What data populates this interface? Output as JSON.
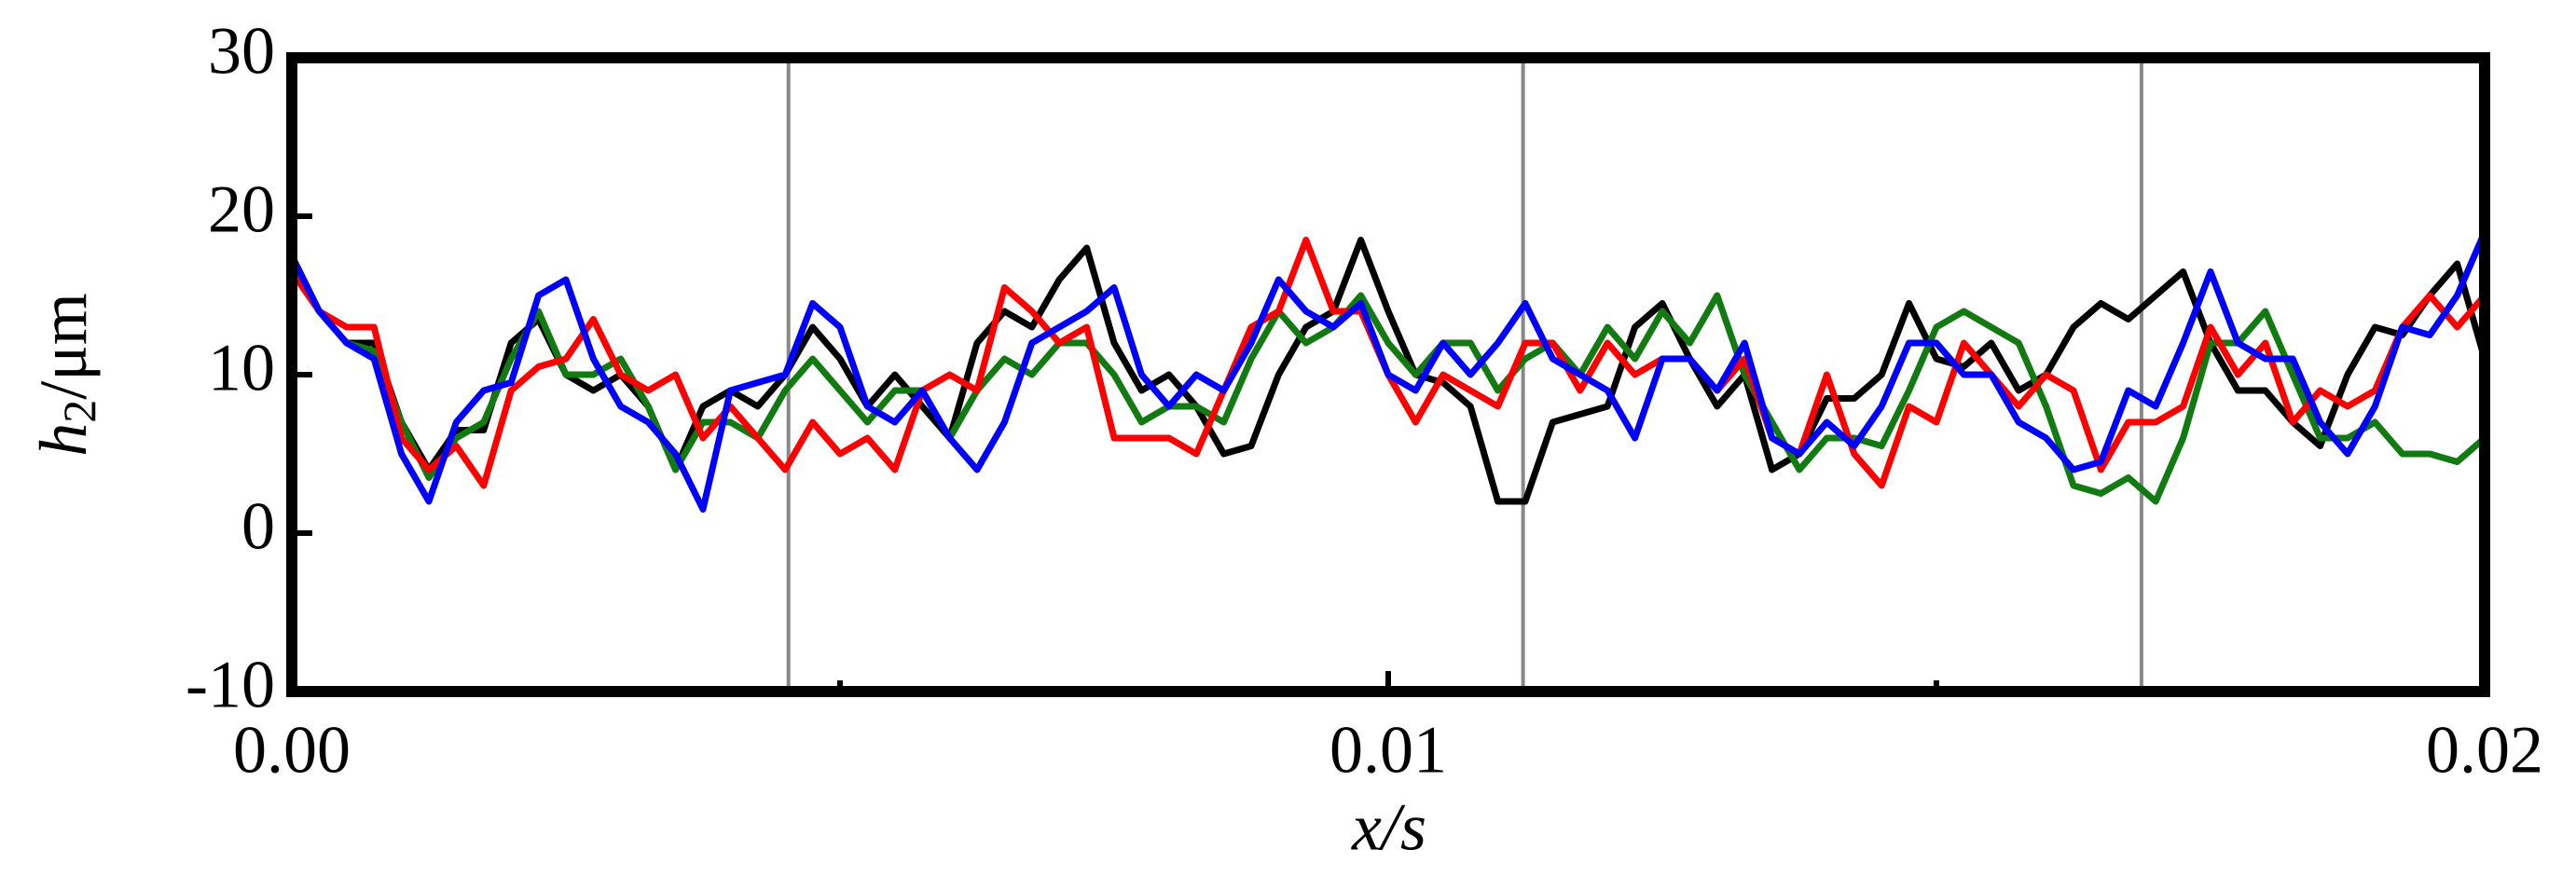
{
  "chart_data": {
    "type": "line",
    "xlabel": "x/s",
    "ylabel": [
      "h",
      "2",
      "/μm"
    ],
    "x": [
      0,
      0.00025,
      0.0005,
      0.00075,
      0.001,
      0.00125,
      0.0015,
      0.00175,
      0.002,
      0.00225,
      0.0025,
      0.00275,
      0.003,
      0.00325,
      0.0035,
      0.00375,
      0.004,
      0.00425,
      0.0045,
      0.00475,
      0.005,
      0.00525,
      0.0055,
      0.00575,
      0.006,
      0.00625,
      0.0065,
      0.00675,
      0.007,
      0.00725,
      0.0075,
      0.00775,
      0.008,
      0.00825,
      0.0085,
      0.00875,
      0.009,
      0.00925,
      0.0095,
      0.00975,
      0.01,
      0.01025,
      0.0105,
      0.01075,
      0.011,
      0.01125,
      0.0115,
      0.01175,
      0.012,
      0.01225,
      0.0125,
      0.01275,
      0.013,
      0.01325,
      0.0135,
      0.01375,
      0.014,
      0.01425,
      0.0145,
      0.01475,
      0.015,
      0.01525,
      0.0155,
      0.01575,
      0.016,
      0.01625,
      0.0165,
      0.01675,
      0.017,
      0.01725,
      0.0175,
      0.01775,
      0.018,
      0.01825,
      0.0185,
      0.01875,
      0.019,
      0.01925,
      0.0195,
      0.01975,
      0.02
    ],
    "series": [
      {
        "color": "#000000",
        "values": [
          17.5,
          14,
          12,
          12,
          7,
          4,
          6.5,
          6.5,
          12,
          13.5,
          10,
          9,
          10,
          8,
          4,
          8,
          9,
          8,
          10,
          13,
          11,
          8,
          10,
          8,
          6,
          12,
          14,
          13,
          16,
          18,
          12,
          9,
          10,
          8,
          5,
          5.5,
          10,
          13,
          14,
          18.5,
          14,
          10,
          9.5,
          8,
          2,
          2,
          7,
          7.5,
          8,
          13,
          14.5,
          11,
          8,
          10,
          4,
          5,
          8.5,
          8.5,
          10,
          14.5,
          11,
          10.5,
          12,
          9,
          10,
          13,
          14.5,
          13.5,
          15,
          16.5,
          12,
          9,
          9,
          7,
          5.5,
          10,
          13,
          12.5,
          15,
          17,
          11
        ]
      },
      {
        "color": "#117a11",
        "values": [
          17,
          14,
          12,
          11.5,
          7,
          3.5,
          6,
          7,
          11,
          14,
          10,
          10,
          11,
          8,
          4,
          7,
          7,
          6,
          9,
          11,
          9,
          7,
          9,
          9,
          6,
          9,
          11,
          10,
          12,
          12,
          10,
          7,
          8,
          8,
          7,
          11,
          14,
          12,
          13,
          15,
          12,
          10,
          12,
          12,
          9,
          11,
          12,
          10,
          13,
          11,
          14,
          12,
          15,
          10,
          7,
          4,
          6,
          6,
          5.5,
          9,
          13,
          14,
          13,
          12,
          8,
          3,
          2.5,
          3.5,
          2,
          6,
          12,
          12,
          14,
          10,
          6,
          6,
          7,
          5,
          5,
          4.5,
          6
        ]
      },
      {
        "color": "#ff0000",
        "values": [
          16.5,
          14,
          13,
          13,
          6,
          4,
          5.5,
          3,
          9,
          10.5,
          11,
          13.5,
          10,
          9,
          10,
          6,
          8,
          6,
          4,
          7,
          5,
          6,
          4,
          9,
          10,
          9,
          15.5,
          14,
          12,
          13,
          6,
          6,
          6,
          5,
          9,
          13,
          14,
          18.5,
          14,
          14,
          10,
          7,
          10,
          9,
          8,
          12,
          12,
          9,
          12,
          10,
          11,
          11,
          9,
          11,
          6,
          5,
          10,
          5,
          3,
          8,
          7,
          12,
          10,
          8,
          10,
          9,
          4,
          7,
          7,
          8,
          13,
          10,
          12,
          7,
          9,
          8,
          9,
          13,
          15,
          13,
          15
        ]
      },
      {
        "color": "#0000ff",
        "values": [
          17.5,
          14,
          12,
          11,
          5,
          2,
          7,
          9,
          9.5,
          15,
          16,
          11,
          8,
          7,
          5,
          1.5,
          9,
          9.5,
          10,
          14.5,
          13,
          8,
          7,
          9,
          6,
          4,
          7,
          12,
          13,
          14,
          15.5,
          10,
          8,
          10,
          9,
          12,
          16,
          14,
          13,
          14.5,
          10,
          9,
          12,
          10,
          12,
          14.5,
          11,
          10,
          9,
          6,
          11,
          11,
          9,
          12,
          6,
          5,
          7,
          5.5,
          8,
          12,
          12,
          10,
          10,
          7,
          6,
          4,
          4.5,
          9,
          8,
          12,
          16.5,
          12,
          11,
          11,
          7,
          5,
          8,
          13,
          12.5,
          15,
          19
        ]
      }
    ],
    "xlim": [
      0,
      0.02
    ],
    "xticks": [
      {
        "value": 0,
        "label": "0.00"
      },
      0.01,
      0.02
    ],
    "xminorticks": [
      0.005,
      0.015
    ],
    "ylim": [
      -10,
      30
    ],
    "yticks": [
      -10,
      0,
      10,
      20,
      30
    ],
    "vlines": [
      0.00453,
      0.01123,
      0.01687
    ],
    "vline_color": "#888888"
  }
}
